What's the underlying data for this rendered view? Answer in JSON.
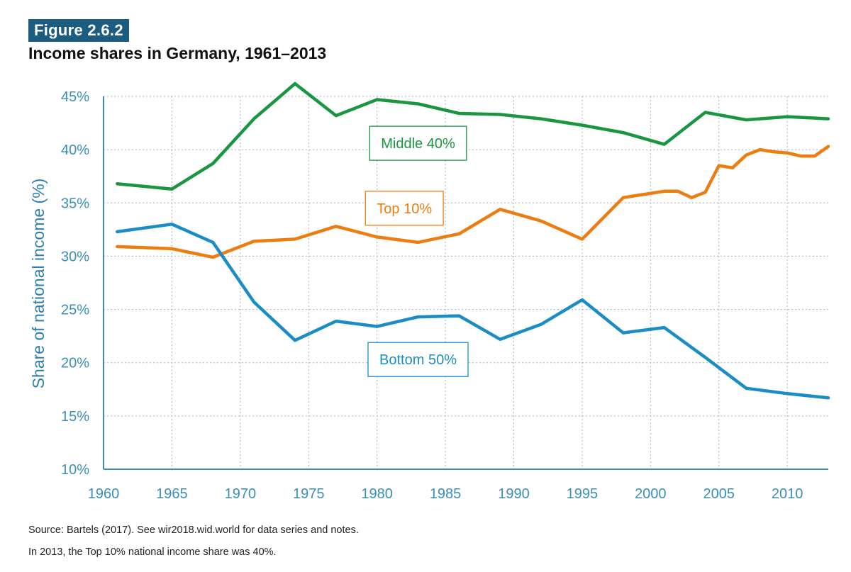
{
  "figure": {
    "badge": "Figure 2.6.2",
    "title": "Income shares in Germany, 1961–2013"
  },
  "footer": {
    "source": "Source: Bartels (2017). See wir2018.wid.world for data series and notes.",
    "note": "In 2013, the Top 10% national income share was 40%."
  },
  "colors": {
    "middle": "#1a9641",
    "top": "#ec7d11",
    "bottom": "#1a8dc6",
    "axis": "#3a8fb9",
    "grid": "#9fb4c8"
  },
  "chart_data": {
    "type": "line",
    "title": "Income shares in Germany, 1961–2013",
    "xlabel": "",
    "ylabel": "Share of national income (%)",
    "xlim": [
      1960,
      2013
    ],
    "ylim": [
      10,
      45
    ],
    "x_ticks": [
      1960,
      1965,
      1970,
      1975,
      1980,
      1985,
      1990,
      1995,
      2000,
      2005,
      2010
    ],
    "x_tick_labels": [
      "1960",
      "1965",
      "1970",
      "1975",
      "1980",
      "1985",
      "1990",
      "1995",
      "2000",
      "2005",
      "2010"
    ],
    "y_ticks": [
      10,
      15,
      20,
      25,
      30,
      35,
      40,
      45
    ],
    "y_tick_labels": [
      "10%",
      "15%",
      "20%",
      "25%",
      "30%",
      "35%",
      "40%",
      "45%"
    ],
    "grid": true,
    "series": [
      {
        "key": "middle",
        "name": "Middle 40%",
        "label_pos": [
          1983,
          40.6
        ],
        "x": [
          1961,
          1965,
          1968,
          1971,
          1974,
          1977,
          1980,
          1983,
          1986,
          1989,
          1992,
          1995,
          1998,
          2001,
          2004,
          2007,
          2010,
          2013
        ],
        "y": [
          36.8,
          36.3,
          38.7,
          42.9,
          46.2,
          43.2,
          44.7,
          44.3,
          43.4,
          43.3,
          42.9,
          42.3,
          41.6,
          40.5,
          43.5,
          42.8,
          43.1,
          42.9
        ]
      },
      {
        "key": "top",
        "name": "Top 10%",
        "label_pos": [
          1982,
          34.5
        ],
        "x": [
          1961,
          1965,
          1968,
          1971,
          1974,
          1977,
          1980,
          1983,
          1986,
          1989,
          1992,
          1995,
          1998,
          2001,
          2002,
          2003,
          2004,
          2005,
          2006,
          2007,
          2008,
          2009,
          2010,
          2011,
          2012,
          2013
        ],
        "y": [
          30.9,
          30.7,
          29.9,
          31.4,
          31.6,
          32.8,
          31.8,
          31.3,
          32.1,
          34.4,
          33.3,
          31.6,
          35.5,
          36.1,
          36.1,
          35.5,
          36.0,
          38.5,
          38.3,
          39.5,
          40.0,
          39.8,
          39.7,
          39.4,
          39.4,
          40.3
        ]
      },
      {
        "key": "bottom",
        "name": "Bottom 50%",
        "label_pos": [
          1983,
          20.3
        ],
        "x": [
          1961,
          1965,
          1968,
          1971,
          1974,
          1977,
          1980,
          1983,
          1986,
          1989,
          1992,
          1995,
          1998,
          2001,
          2004,
          2007,
          2010,
          2013
        ],
        "y": [
          32.3,
          33.0,
          31.3,
          25.7,
          22.1,
          23.9,
          23.4,
          24.3,
          24.4,
          22.2,
          23.6,
          25.9,
          22.8,
          23.3,
          20.5,
          17.6,
          17.1,
          16.7
        ]
      }
    ]
  }
}
